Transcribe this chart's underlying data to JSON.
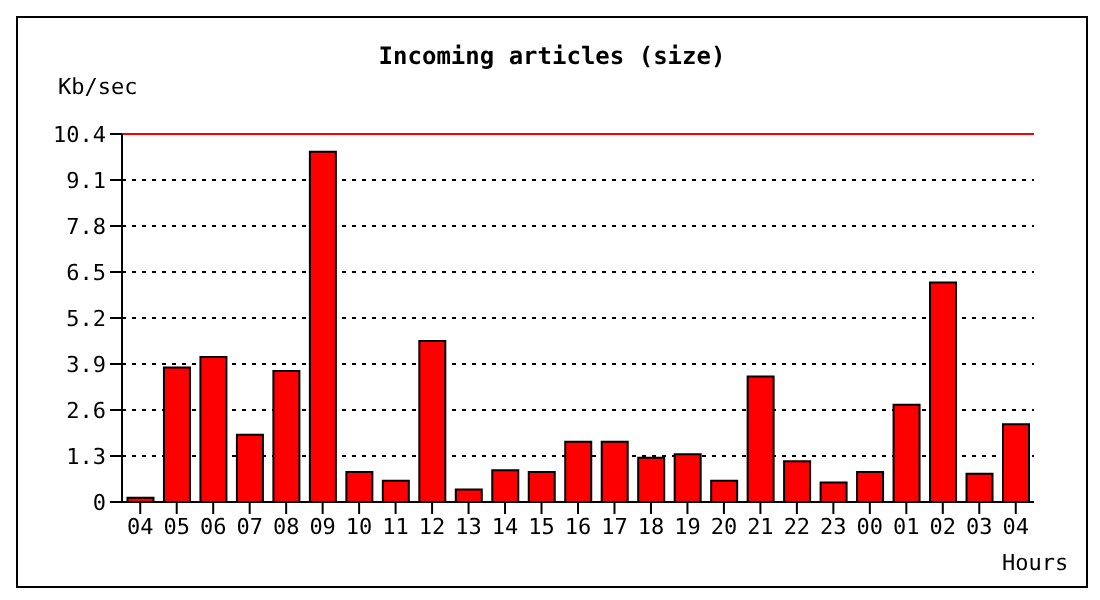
{
  "chart_data": {
    "type": "bar",
    "title": "Incoming articles (size)",
    "ylabel": "Kb/sec",
    "xlabel": "Hours",
    "categories": [
      "04",
      "05",
      "06",
      "07",
      "08",
      "09",
      "10",
      "11",
      "12",
      "13",
      "14",
      "15",
      "16",
      "17",
      "18",
      "19",
      "20",
      "21",
      "22",
      "23",
      "00",
      "01",
      "02",
      "03",
      "04"
    ],
    "values": [
      0.12,
      3.8,
      4.1,
      1.9,
      3.7,
      9.9,
      0.85,
      0.6,
      4.55,
      0.35,
      0.9,
      0.85,
      1.7,
      1.7,
      1.25,
      1.35,
      0.6,
      3.55,
      1.15,
      0.55,
      0.85,
      2.75,
      6.2,
      0.8,
      2.2
    ],
    "color": "#ff0000",
    "ylim": [
      0,
      10.4
    ],
    "yticks": [
      0,
      1.3,
      2.6,
      3.9,
      5.2,
      6.5,
      7.8,
      9.1,
      10.4
    ],
    "grid": "y",
    "ref_lines": [
      {
        "axis": "y",
        "value": 10.4,
        "color": "#ff0000"
      }
    ]
  }
}
